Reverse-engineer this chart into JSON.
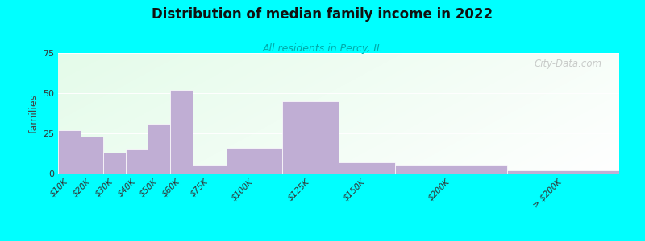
{
  "title": "Distribution of median family income in 2022",
  "subtitle": "All residents in Percy, IL",
  "ylabel": "families",
  "background_outer": "#00FFFF",
  "bar_color": "#c0aed4",
  "bar_edge_color": "#b0a0c8",
  "categories": [
    "$10K",
    "$20K",
    "$30K",
    "$40K",
    "$50K",
    "$60K",
    "$75K",
    "$100K",
    "$125K",
    "$150K",
    "$200K",
    "> $200K"
  ],
  "values": [
    27,
    23,
    13,
    15,
    31,
    52,
    5,
    16,
    45,
    7,
    5,
    2
  ],
  "bar_lefts": [
    0,
    10,
    20,
    30,
    40,
    50,
    60,
    75,
    100,
    125,
    150,
    200
  ],
  "bar_widths": [
    10,
    10,
    10,
    10,
    10,
    10,
    15,
    25,
    25,
    25,
    50,
    50
  ],
  "xlim": [
    0,
    250
  ],
  "ylim": [
    0,
    75
  ],
  "yticks": [
    0,
    25,
    50,
    75
  ],
  "watermark": "City-Data.com",
  "tick_positions": [
    5,
    15,
    25,
    35,
    45,
    55,
    67.5,
    87.5,
    112.5,
    137.5,
    175,
    225
  ]
}
